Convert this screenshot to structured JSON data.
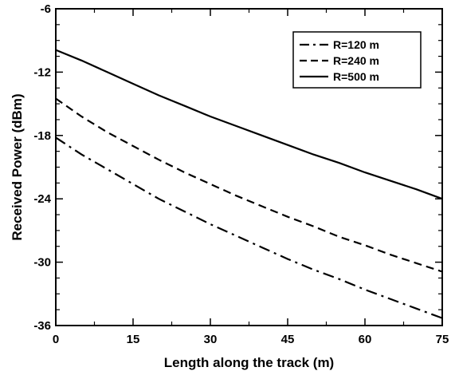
{
  "chart_data": {
    "type": "line",
    "title": "",
    "xlabel": "Length along the track (m)",
    "ylabel": "Received Power (dBm)",
    "xlim": [
      0,
      75
    ],
    "ylim": [
      -36,
      -6
    ],
    "xticks": [
      0,
      15,
      30,
      45,
      60,
      75
    ],
    "yticks": [
      -36,
      -30,
      -24,
      -18,
      -12,
      -6
    ],
    "grid": false,
    "legend_position": "top-right",
    "x": [
      0,
      5,
      10,
      15,
      20,
      25,
      30,
      35,
      40,
      45,
      50,
      55,
      60,
      65,
      70,
      75
    ],
    "series": [
      {
        "name": "R=120 m",
        "line_style": "dash-dot",
        "color": "#000000",
        "values": [
          -18.2,
          -19.8,
          -21.2,
          -22.6,
          -24.0,
          -25.2,
          -26.4,
          -27.5,
          -28.6,
          -29.7,
          -30.7,
          -31.6,
          -32.6,
          -33.5,
          -34.4,
          -35.3
        ]
      },
      {
        "name": "R=240 m",
        "line_style": "dashed",
        "color": "#000000",
        "values": [
          -14.5,
          -16.2,
          -17.7,
          -19.0,
          -20.3,
          -21.5,
          -22.6,
          -23.7,
          -24.7,
          -25.7,
          -26.6,
          -27.6,
          -28.4,
          -29.3,
          -30.1,
          -30.9
        ]
      },
      {
        "name": "R=500 m",
        "line_style": "solid",
        "color": "#000000",
        "values": [
          -9.9,
          -10.9,
          -12.0,
          -13.1,
          -14.2,
          -15.2,
          -16.2,
          -17.1,
          -18.0,
          -18.9,
          -19.8,
          -20.6,
          -21.5,
          -22.3,
          -23.1,
          -24.0
        ]
      }
    ]
  }
}
